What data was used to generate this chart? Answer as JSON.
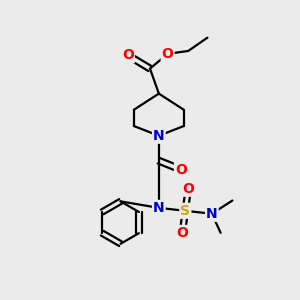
{
  "background_color": "#ebebeb",
  "atom_colors": {
    "C": "#000000",
    "N": "#0000cc",
    "O": "#ff0000",
    "S": "#ccaa00"
  },
  "bond_color": "#000000",
  "bond_width": 1.6,
  "figsize": [
    3.0,
    3.0
  ],
  "dpi": 100,
  "xlim": [
    0,
    10
  ],
  "ylim": [
    0,
    10
  ]
}
